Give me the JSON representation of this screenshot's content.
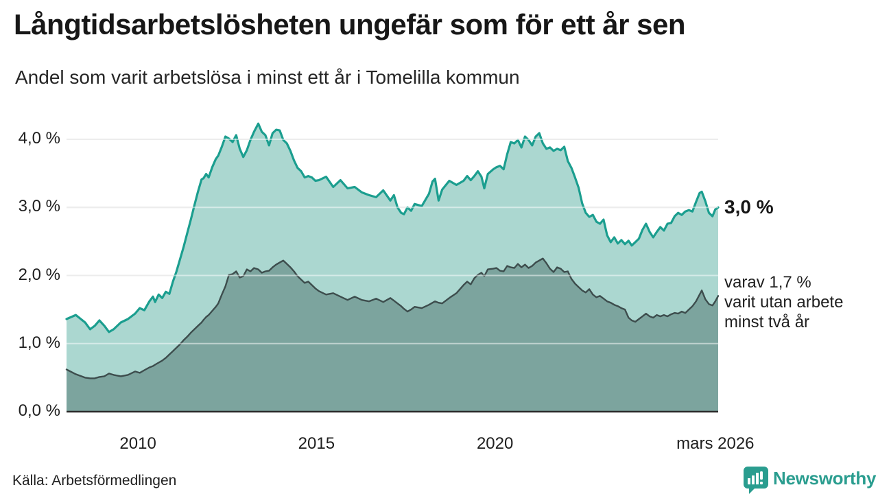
{
  "header": {
    "title": "Långtidsarbetslösheten ungefär som för ett år sen",
    "subtitle": "Andel som varit arbetslösa i minst ett år i Tomelilla kommun"
  },
  "annotations": {
    "end_value_primary": "3,0 %",
    "end_note_lines": [
      "varav 1,7 %",
      "varit utan arbete",
      "minst två år"
    ]
  },
  "footer": {
    "source": "Källa: Arbetsförmedlingen",
    "logo_text": "Newsworthy"
  },
  "chart_data": {
    "type": "area",
    "title": "Långtidsarbetslösheten ungefär som för ett år sen",
    "subtitle": "Andel som varit arbetslösa i minst ett år i Tomelilla kommun",
    "xlabel": "",
    "ylabel": "",
    "xlim": [
      2008.0,
      2026.25
    ],
    "ylim": [
      0,
      4.3
    ],
    "grid": true,
    "legend_position": "none",
    "yticks": [
      {
        "value": 0,
        "label": "0,0 %"
      },
      {
        "value": 1,
        "label": "1,0 %"
      },
      {
        "value": 2,
        "label": "2,0 %"
      },
      {
        "value": 3,
        "label": "3,0 %"
      },
      {
        "value": 4,
        "label": "4,0 %"
      }
    ],
    "xticks": [
      {
        "t": 2010.0,
        "label": "2010"
      },
      {
        "t": 2015.0,
        "label": "2015"
      },
      {
        "t": 2020.0,
        "label": "2020"
      },
      {
        "t": 2026.17,
        "label": "mars 2026"
      }
    ],
    "colors": {
      "one_year_line": "#1b9e8f",
      "one_year_fill": "#abd7d0",
      "two_year_line": "#3d4d4d",
      "two_year_fill": "#7ca49e",
      "gridline": "#d9d9d9",
      "axis_line": "#2b2b2b",
      "logo_teal": "#2a9d8f"
    },
    "x_decimal_years": [
      2008.0,
      2008.26,
      2008.52,
      2008.66,
      2008.79,
      2008.92,
      2009.06,
      2009.19,
      2009.32,
      2009.52,
      2009.72,
      2009.92,
      2010.05,
      2010.18,
      2010.32,
      2010.42,
      2010.48,
      2010.58,
      2010.68,
      2010.78,
      2010.88,
      2010.98,
      2011.08,
      2011.18,
      2011.28,
      2011.38,
      2011.48,
      2011.58,
      2011.68,
      2011.78,
      2011.84,
      2011.91,
      2011.98,
      2012.08,
      2012.18,
      2012.25,
      2012.35,
      2012.45,
      2012.55,
      2012.65,
      2012.75,
      2012.85,
      2012.95,
      2013.05,
      2013.15,
      2013.25,
      2013.37,
      2013.47,
      2013.57,
      2013.67,
      2013.77,
      2013.87,
      2013.97,
      2014.07,
      2014.17,
      2014.27,
      2014.37,
      2014.47,
      2014.57,
      2014.67,
      2014.77,
      2014.87,
      2014.97,
      2015.07,
      2015.27,
      2015.47,
      2015.67,
      2015.87,
      2016.07,
      2016.27,
      2016.47,
      2016.67,
      2016.87,
      2017.07,
      2017.17,
      2017.27,
      2017.37,
      2017.45,
      2017.55,
      2017.65,
      2017.75,
      2017.95,
      2018.15,
      2018.25,
      2018.32,
      2018.42,
      2018.52,
      2018.72,
      2018.92,
      2019.12,
      2019.22,
      2019.32,
      2019.42,
      2019.52,
      2019.62,
      2019.7,
      2019.8,
      2019.95,
      2020.04,
      2020.14,
      2020.24,
      2020.34,
      2020.44,
      2020.54,
      2020.64,
      2020.74,
      2020.84,
      2020.94,
      2021.04,
      2021.14,
      2021.24,
      2021.34,
      2021.44,
      2021.54,
      2021.64,
      2021.74,
      2021.84,
      2021.94,
      2022.04,
      2022.14,
      2022.24,
      2022.34,
      2022.44,
      2022.54,
      2022.64,
      2022.74,
      2022.84,
      2022.94,
      2023.04,
      2023.14,
      2023.24,
      2023.34,
      2023.44,
      2023.54,
      2023.64,
      2023.74,
      2023.83,
      2023.93,
      2024.03,
      2024.13,
      2024.23,
      2024.33,
      2024.43,
      2024.53,
      2024.63,
      2024.73,
      2024.83,
      2024.93,
      2025.03,
      2025.13,
      2025.23,
      2025.33,
      2025.43,
      2025.53,
      2025.63,
      2025.73,
      2025.79,
      2025.89,
      2025.99,
      2026.09,
      2026.17,
      2026.25
    ],
    "series": [
      {
        "name": "minst ett år",
        "end_label": "3,0 %",
        "values": [
          1.36,
          1.42,
          1.31,
          1.21,
          1.26,
          1.34,
          1.26,
          1.17,
          1.21,
          1.31,
          1.36,
          1.44,
          1.52,
          1.49,
          1.62,
          1.69,
          1.61,
          1.72,
          1.67,
          1.76,
          1.73,
          1.91,
          2.06,
          2.24,
          2.42,
          2.62,
          2.82,
          3.03,
          3.23,
          3.41,
          3.43,
          3.49,
          3.44,
          3.59,
          3.71,
          3.76,
          3.89,
          4.04,
          4.01,
          3.96,
          4.06,
          3.86,
          3.74,
          3.84,
          3.99,
          4.11,
          4.23,
          4.11,
          4.06,
          3.91,
          4.09,
          4.14,
          4.13,
          3.99,
          3.94,
          3.83,
          3.69,
          3.58,
          3.53,
          3.44,
          3.46,
          3.44,
          3.39,
          3.4,
          3.45,
          3.3,
          3.4,
          3.28,
          3.3,
          3.22,
          3.18,
          3.15,
          3.25,
          3.1,
          3.18,
          3.0,
          2.92,
          2.9,
          3.0,
          2.95,
          3.05,
          3.02,
          3.2,
          3.38,
          3.42,
          3.1,
          3.26,
          3.39,
          3.33,
          3.39,
          3.46,
          3.4,
          3.46,
          3.53,
          3.45,
          3.28,
          3.49,
          3.56,
          3.59,
          3.61,
          3.56,
          3.78,
          3.96,
          3.94,
          3.99,
          3.88,
          4.04,
          3.99,
          3.91,
          4.04,
          4.09,
          3.94,
          3.86,
          3.88,
          3.83,
          3.86,
          3.84,
          3.89,
          3.68,
          3.58,
          3.44,
          3.29,
          3.06,
          2.92,
          2.86,
          2.89,
          2.79,
          2.76,
          2.82,
          2.59,
          2.49,
          2.56,
          2.47,
          2.52,
          2.46,
          2.51,
          2.44,
          2.49,
          2.54,
          2.67,
          2.76,
          2.64,
          2.56,
          2.64,
          2.71,
          2.66,
          2.76,
          2.77,
          2.87,
          2.92,
          2.89,
          2.94,
          2.96,
          2.94,
          3.08,
          3.21,
          3.23,
          3.09,
          2.92,
          2.87,
          2.97,
          3.0
        ]
      },
      {
        "name": "minst två år",
        "end_label": "varav 1,7 % varit utan arbete minst två år",
        "values": [
          0.62,
          0.55,
          0.5,
          0.49,
          0.49,
          0.51,
          0.52,
          0.56,
          0.54,
          0.52,
          0.54,
          0.59,
          0.57,
          0.61,
          0.65,
          0.67,
          0.69,
          0.72,
          0.75,
          0.79,
          0.84,
          0.89,
          0.94,
          0.99,
          1.05,
          1.1,
          1.16,
          1.21,
          1.26,
          1.31,
          1.35,
          1.39,
          1.42,
          1.48,
          1.54,
          1.59,
          1.72,
          1.84,
          2.01,
          2.02,
          2.06,
          1.97,
          1.99,
          2.09,
          2.06,
          2.11,
          2.09,
          2.04,
          2.06,
          2.07,
          2.12,
          2.16,
          2.19,
          2.22,
          2.17,
          2.12,
          2.06,
          1.99,
          1.94,
          1.89,
          1.91,
          1.86,
          1.81,
          1.77,
          1.72,
          1.74,
          1.69,
          1.64,
          1.69,
          1.64,
          1.62,
          1.66,
          1.61,
          1.67,
          1.63,
          1.59,
          1.55,
          1.51,
          1.47,
          1.5,
          1.54,
          1.52,
          1.57,
          1.6,
          1.62,
          1.6,
          1.59,
          1.67,
          1.74,
          1.86,
          1.91,
          1.87,
          1.96,
          2.01,
          2.04,
          1.99,
          2.09,
          2.1,
          2.11,
          2.07,
          2.06,
          2.14,
          2.12,
          2.11,
          2.17,
          2.12,
          2.16,
          2.11,
          2.14,
          2.19,
          2.22,
          2.25,
          2.18,
          2.1,
          2.05,
          2.12,
          2.1,
          2.05,
          2.06,
          1.95,
          1.88,
          1.83,
          1.78,
          1.75,
          1.8,
          1.72,
          1.68,
          1.7,
          1.66,
          1.62,
          1.6,
          1.57,
          1.55,
          1.52,
          1.5,
          1.38,
          1.34,
          1.32,
          1.36,
          1.4,
          1.44,
          1.4,
          1.38,
          1.42,
          1.4,
          1.42,
          1.4,
          1.43,
          1.45,
          1.44,
          1.47,
          1.45,
          1.5,
          1.55,
          1.62,
          1.72,
          1.78,
          1.65,
          1.58,
          1.56,
          1.62,
          1.7
        ]
      }
    ]
  }
}
